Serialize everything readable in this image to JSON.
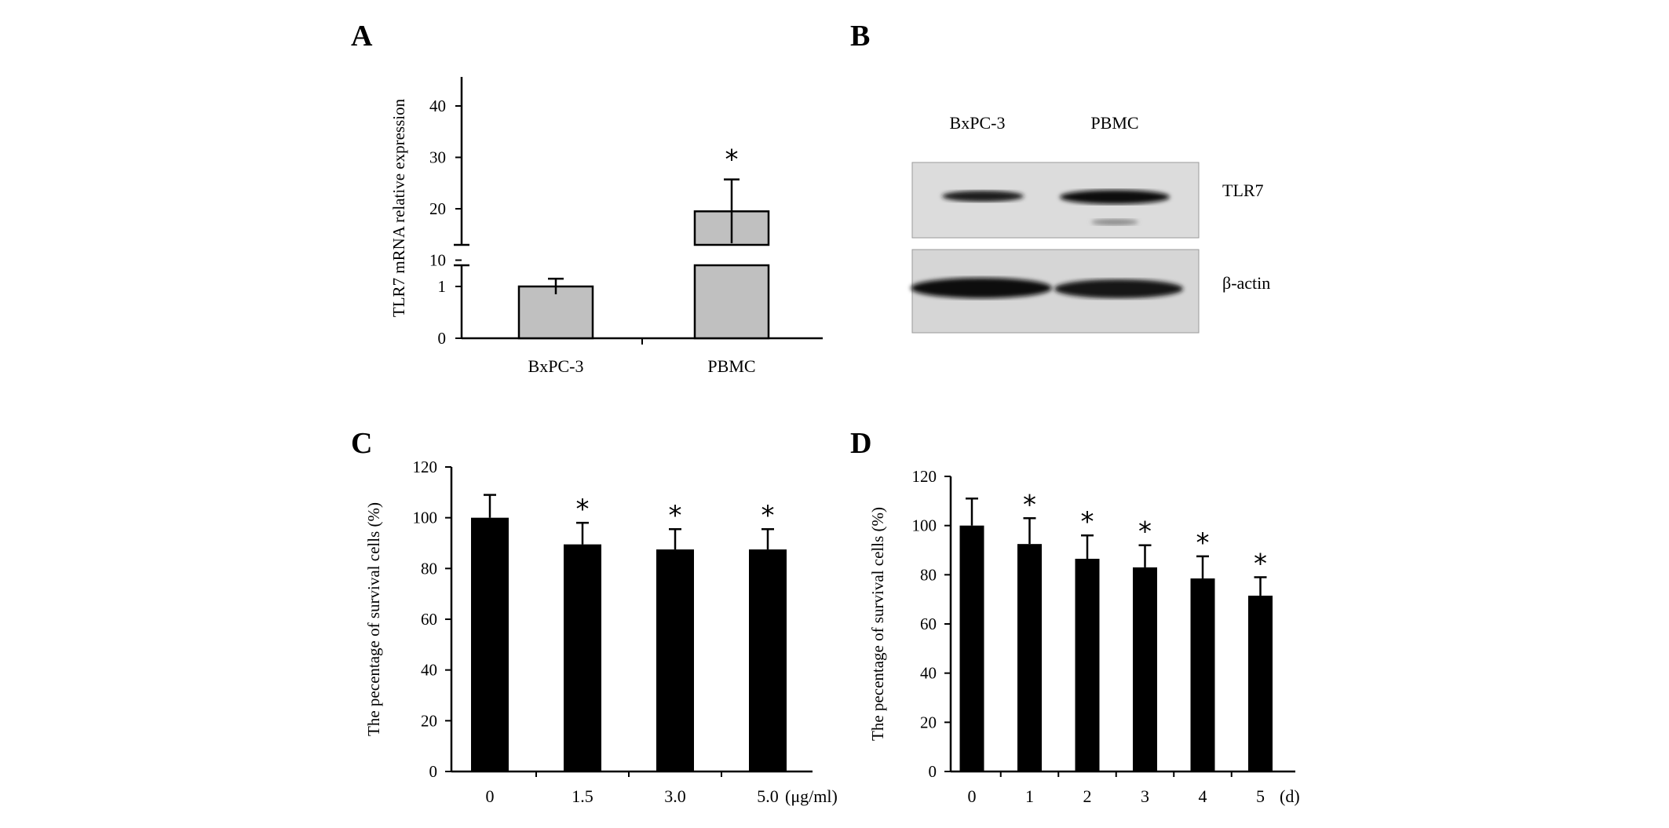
{
  "panels": {
    "A": "A",
    "B": "B",
    "C": "C",
    "D": "D"
  },
  "blot": {
    "lanes": [
      "BxPC-3",
      "PBMC"
    ],
    "bands": [
      "TLR7",
      "β-actin"
    ]
  },
  "colors": {
    "bar_gray": "#c0c0c0",
    "bar_black": "#000000",
    "axis": "#000000"
  },
  "chart_data": [
    {
      "panel": "A",
      "type": "bar",
      "categories": [
        "BxPC-3",
        "PBMC"
      ],
      "values": [
        1,
        19.5
      ],
      "errors": [
        0.15,
        6.2
      ],
      "significance": [
        "",
        "*"
      ],
      "ylabel": "TLR7 mRNA relative expression",
      "y_scale": "broken",
      "ticks_lower": [
        0,
        1
      ],
      "ticks_upper": [
        10,
        20,
        30,
        40
      ],
      "ylim": [
        0,
        40
      ]
    },
    {
      "panel": "C",
      "type": "bar",
      "categories": [
        "0",
        "1.5",
        "3.0",
        "5.0"
      ],
      "x_unit": "(μg/ml)",
      "values": [
        100,
        89.5,
        87.5,
        87.5
      ],
      "errors": [
        9,
        8.5,
        8,
        8
      ],
      "significance": [
        "",
        "*",
        "*",
        "*"
      ],
      "ylabel": "The pecentage of survival cells (%)",
      "yticks": [
        0,
        20,
        40,
        60,
        80,
        100,
        120
      ],
      "ylim": [
        0,
        120
      ]
    },
    {
      "panel": "D",
      "type": "bar",
      "categories": [
        "0",
        "1",
        "2",
        "3",
        "4",
        "5"
      ],
      "x_unit": "(d)",
      "values": [
        100,
        92.5,
        86.5,
        83,
        78.5,
        71.5
      ],
      "errors": [
        11,
        10.5,
        9.5,
        9,
        9,
        7.5
      ],
      "significance": [
        "",
        "*",
        "*",
        "*",
        "*",
        "*"
      ],
      "ylabel": "The pecentage of survival cells (%)",
      "yticks": [
        0,
        20,
        40,
        60,
        80,
        100,
        120
      ],
      "ylim": [
        0,
        120
      ]
    }
  ]
}
